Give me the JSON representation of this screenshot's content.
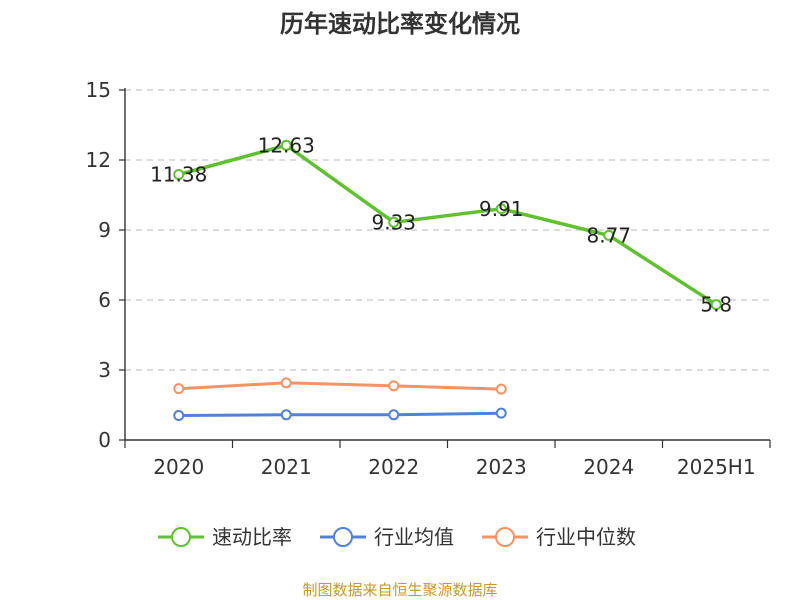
{
  "chart_data": {
    "type": "line",
    "title": "历年速动比率变化情况",
    "categories": [
      "2020",
      "2021",
      "2022",
      "2023",
      "2024",
      "2025H1"
    ],
    "ylim": [
      0,
      15
    ],
    "yticks": [
      0,
      3,
      6,
      9,
      12,
      15
    ],
    "grid": "horizontal dashed",
    "legend_position": "bottom",
    "series": [
      {
        "name": "速动比率",
        "color": "#5ec12d",
        "values": [
          11.38,
          12.63,
          9.33,
          9.91,
          8.77,
          5.8
        ],
        "labels": [
          "11.38",
          "12.63",
          "9.33",
          "9.91",
          "8.77",
          "5.8"
        ]
      },
      {
        "name": "行业均值",
        "color": "#4f82d8",
        "values": [
          1.05,
          1.08,
          1.08,
          1.15,
          null,
          null
        ]
      },
      {
        "name": "行业中位数",
        "color": "#f59364",
        "values": [
          2.2,
          2.45,
          2.32,
          2.18,
          null,
          null
        ]
      }
    ]
  },
  "source_text": "制图数据来自恒生聚源数据库"
}
